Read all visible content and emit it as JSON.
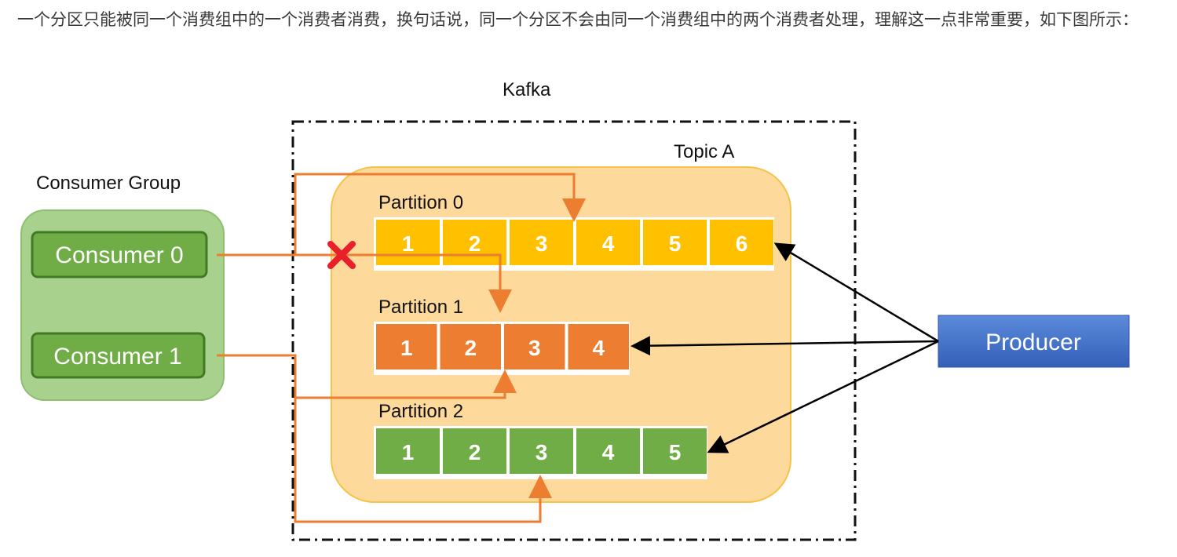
{
  "paragraph": "一个分区只能被同一个消费组中的一个消费者消费，换句话说，同一个分区不会由同一个消费组中的两个消费者处理，理解这一点非常重要，如下图所示：",
  "diagram": {
    "kafka_label": "Kafka",
    "topic_label": "Topic A",
    "consumer_group_label": "Consumer Group",
    "consumers": [
      "Consumer 0",
      "Consumer 1"
    ],
    "producer": "Producer",
    "partitions": [
      {
        "label": "Partition 0",
        "cells": [
          "1",
          "2",
          "3",
          "4",
          "5",
          "6"
        ],
        "color": "#FFC000"
      },
      {
        "label": "Partition 1",
        "cells": [
          "1",
          "2",
          "3",
          "4"
        ],
        "color": "#ED7D31"
      },
      {
        "label": "Partition 2",
        "cells": [
          "1",
          "2",
          "3",
          "4",
          "5"
        ],
        "color": "#70AD47"
      }
    ],
    "colors": {
      "connector": "#ED7D31",
      "blocked": "#E8202A",
      "producer": "#4472C4",
      "topic_fill": "#FDD99B",
      "group_fill": "#A9D18E"
    }
  }
}
